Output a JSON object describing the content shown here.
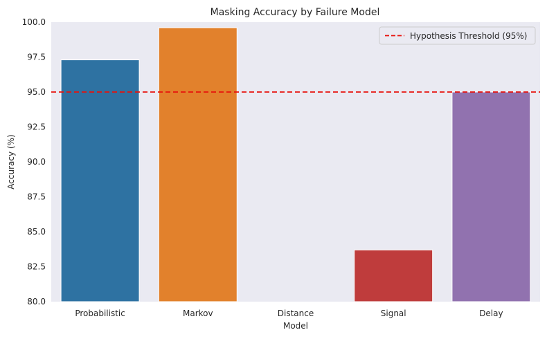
{
  "chart_data": {
    "type": "bar",
    "title": "Masking Accuracy by Failure Model",
    "xlabel": "Model",
    "ylabel": "Accuracy (%)",
    "categories": [
      "Probabilistic",
      "Markov",
      "Distance",
      "Signal",
      "Delay"
    ],
    "values": [
      97.3,
      99.6,
      80.0,
      83.7,
      95.0
    ],
    "colors": [
      "#2e72a2",
      "#e2812c",
      "#3a923a",
      "#bf3c3c",
      "#9172af"
    ],
    "ylim": [
      80.0,
      100.0
    ],
    "yticks": [
      "80.0",
      "82.5",
      "85.0",
      "87.5",
      "90.0",
      "92.5",
      "95.0",
      "97.5",
      "100.0"
    ],
    "threshold": {
      "value": 95.0,
      "label": "Hypothesis Threshold (95%)",
      "color": "#e8120c",
      "style": "dashed"
    },
    "legend_position": "top-right",
    "grid": false,
    "background": "#eaeaf2"
  }
}
